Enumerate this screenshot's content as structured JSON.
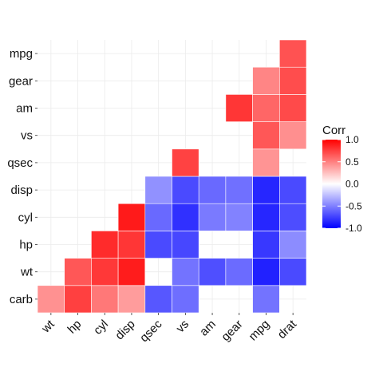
{
  "chart_data": {
    "type": "heatmap",
    "x_categories": [
      "wt",
      "hp",
      "cyl",
      "disp",
      "qsec",
      "vs",
      "am",
      "gear",
      "mpg",
      "drat"
    ],
    "y_categories": [
      "carb",
      "wt",
      "hp",
      "cyl",
      "disp",
      "qsec",
      "vs",
      "am",
      "gear",
      "mpg"
    ],
    "value_range": [
      -1,
      1
    ],
    "colors": {
      "low": "#0000ff",
      "mid": "#ffffff",
      "high": "#ff0000",
      "grid": "#ebebeb",
      "background": "#ffffff"
    },
    "grid": true,
    "legend": {
      "title": "Corr",
      "position": "right",
      "ticks": [
        1.0,
        0.5,
        0.0,
        -0.5,
        -1.0
      ],
      "tick_labels": [
        "1.0",
        "0.5",
        "0.0",
        "-0.5",
        "-1.0"
      ]
    },
    "cells": [
      {
        "x": "wt",
        "y": "carb",
        "value": 0.43
      },
      {
        "x": "hp",
        "y": "carb",
        "value": 0.75
      },
      {
        "x": "cyl",
        "y": "carb",
        "value": 0.53
      },
      {
        "x": "disp",
        "y": "carb",
        "value": 0.39
      },
      {
        "x": "qsec",
        "y": "carb",
        "value": -0.66
      },
      {
        "x": "vs",
        "y": "carb",
        "value": -0.57
      },
      {
        "x": "mpg",
        "y": "carb",
        "value": -0.55
      },
      {
        "x": "hp",
        "y": "wt",
        "value": 0.66
      },
      {
        "x": "cyl",
        "y": "wt",
        "value": 0.78
      },
      {
        "x": "disp",
        "y": "wt",
        "value": 0.89
      },
      {
        "x": "vs",
        "y": "wt",
        "value": -0.55
      },
      {
        "x": "am",
        "y": "wt",
        "value": -0.69
      },
      {
        "x": "gear",
        "y": "wt",
        "value": -0.58
      },
      {
        "x": "mpg",
        "y": "wt",
        "value": -0.87
      },
      {
        "x": "drat",
        "y": "wt",
        "value": -0.71
      },
      {
        "x": "cyl",
        "y": "hp",
        "value": 0.83
      },
      {
        "x": "disp",
        "y": "hp",
        "value": 0.79
      },
      {
        "x": "qsec",
        "y": "hp",
        "value": -0.71
      },
      {
        "x": "vs",
        "y": "hp",
        "value": -0.72
      },
      {
        "x": "mpg",
        "y": "hp",
        "value": -0.78
      },
      {
        "x": "drat",
        "y": "hp",
        "value": -0.45
      },
      {
        "x": "disp",
        "y": "cyl",
        "value": 0.9
      },
      {
        "x": "qsec",
        "y": "cyl",
        "value": -0.59
      },
      {
        "x": "vs",
        "y": "cyl",
        "value": -0.81
      },
      {
        "x": "am",
        "y": "cyl",
        "value": -0.52
      },
      {
        "x": "gear",
        "y": "cyl",
        "value": -0.49
      },
      {
        "x": "mpg",
        "y": "cyl",
        "value": -0.85
      },
      {
        "x": "drat",
        "y": "cyl",
        "value": -0.7
      },
      {
        "x": "qsec",
        "y": "disp",
        "value": -0.43
      },
      {
        "x": "vs",
        "y": "disp",
        "value": -0.71
      },
      {
        "x": "am",
        "y": "disp",
        "value": -0.59
      },
      {
        "x": "gear",
        "y": "disp",
        "value": -0.56
      },
      {
        "x": "mpg",
        "y": "disp",
        "value": -0.85
      },
      {
        "x": "drat",
        "y": "disp",
        "value": -0.71
      },
      {
        "x": "vs",
        "y": "qsec",
        "value": 0.74
      },
      {
        "x": "mpg",
        "y": "qsec",
        "value": 0.42
      },
      {
        "x": "mpg",
        "y": "vs",
        "value": 0.66
      },
      {
        "x": "drat",
        "y": "vs",
        "value": 0.44
      },
      {
        "x": "gear",
        "y": "am",
        "value": 0.79
      },
      {
        "x": "mpg",
        "y": "am",
        "value": 0.6
      },
      {
        "x": "drat",
        "y": "am",
        "value": 0.71
      },
      {
        "x": "mpg",
        "y": "gear",
        "value": 0.48
      },
      {
        "x": "drat",
        "y": "gear",
        "value": 0.7
      },
      {
        "x": "drat",
        "y": "mpg",
        "value": 0.68
      }
    ]
  }
}
